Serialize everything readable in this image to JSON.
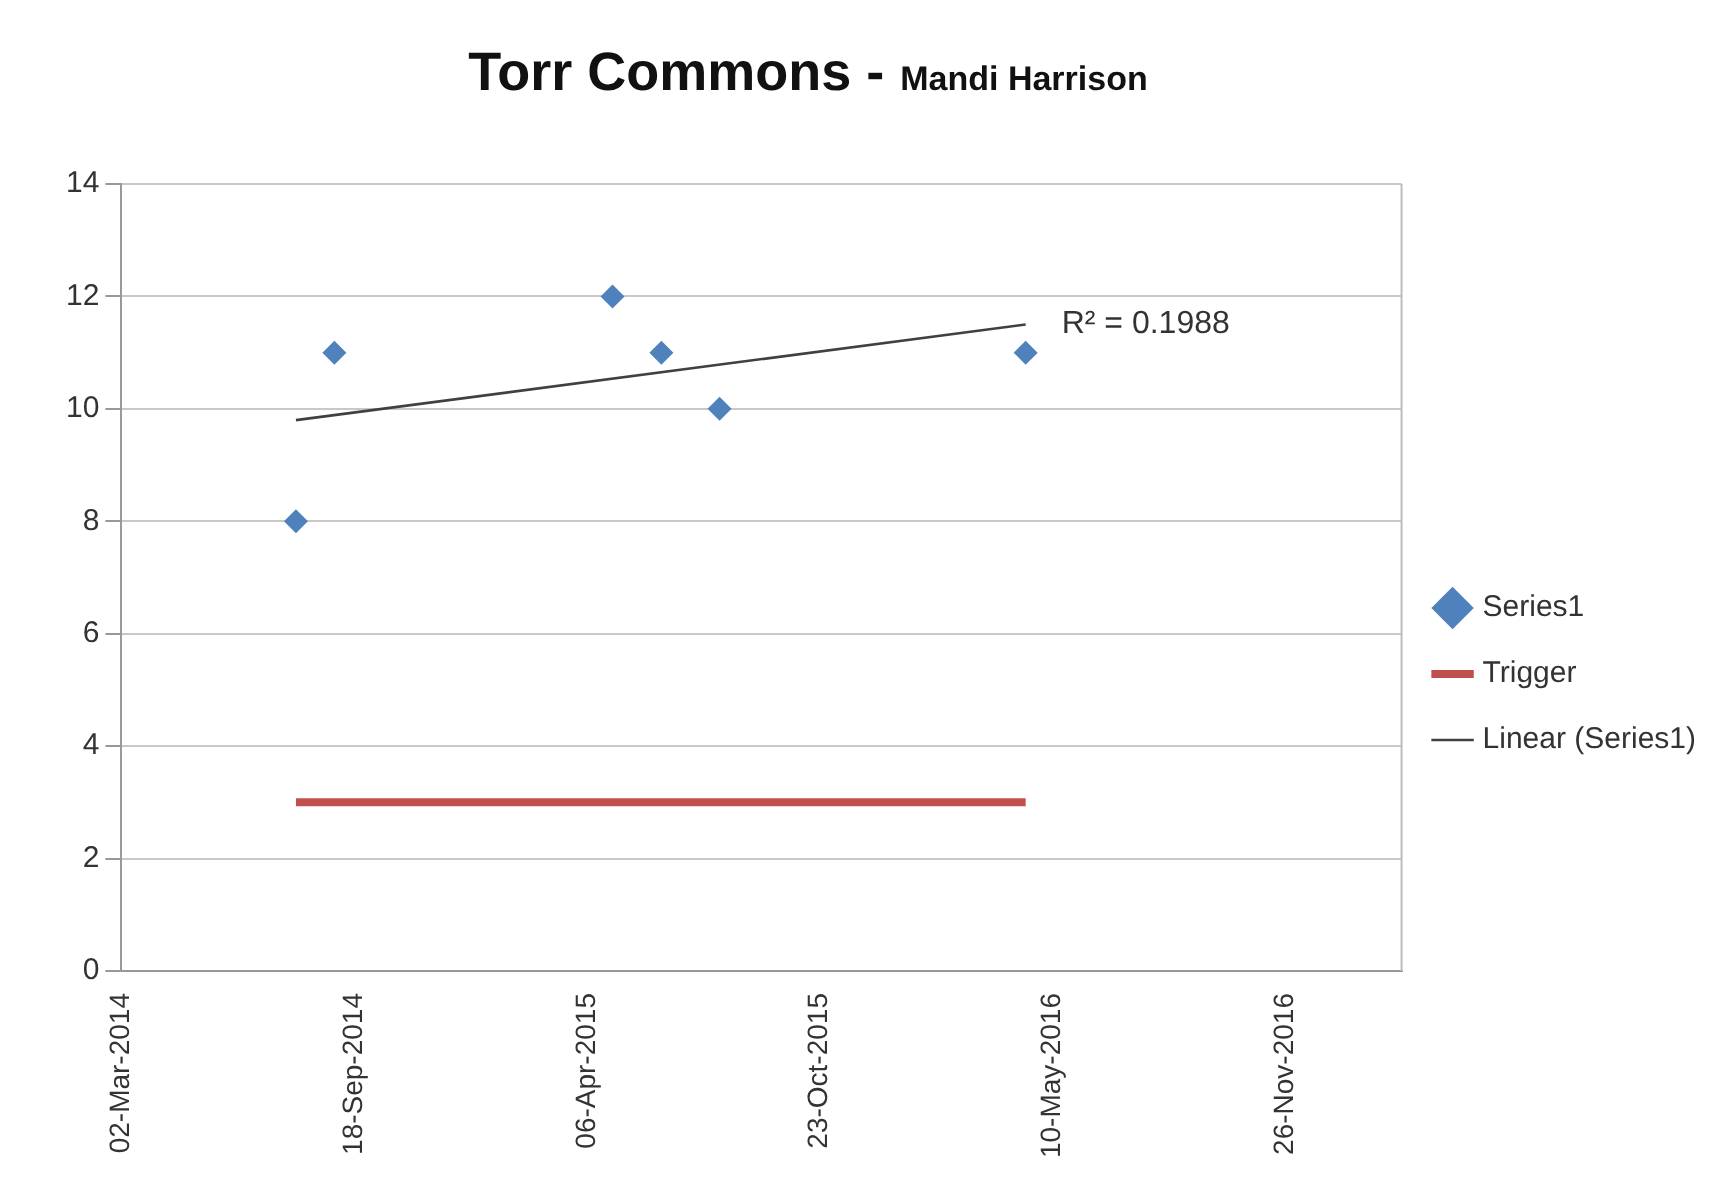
{
  "chart_data": {
    "type": "scatter",
    "title": "Torr Commons -",
    "subtitle": "Mandi Harrison",
    "xlim": [
      "2014-03-02",
      "2017-03-06"
    ],
    "xticks": [
      {
        "value": "2014-03-02",
        "label": "02-Mar-2014"
      },
      {
        "value": "2014-09-18",
        "label": "18-Sep-2014"
      },
      {
        "value": "2015-04-06",
        "label": "06-Apr-2015"
      },
      {
        "value": "2015-10-23",
        "label": "23-Oct-2015"
      },
      {
        "value": "2016-05-10",
        "label": "10-May-2016"
      },
      {
        "value": "2016-11-26",
        "label": "26-Nov-2016"
      }
    ],
    "ylim": [
      0,
      14
    ],
    "yticks": [
      0,
      2,
      4,
      6,
      8,
      10,
      12,
      14
    ],
    "grid": "y",
    "legend": "right",
    "series": [
      {
        "name": "Series1",
        "type": "scatter",
        "marker": "diamond",
        "color": "#4f81bd",
        "x": [
          "2014-07-30",
          "2014-09-01",
          "2015-04-28",
          "2015-06-09",
          "2015-07-29",
          "2016-04-17"
        ],
        "values": [
          8,
          11,
          12,
          11,
          10,
          11
        ]
      },
      {
        "name": "Trigger",
        "type": "line",
        "marker": "none",
        "color": "#c0504d",
        "x": [
          "2014-07-30",
          "2016-04-17"
        ],
        "values": [
          3,
          3
        ]
      },
      {
        "name": "Linear (Series1)",
        "type": "line",
        "marker": "none",
        "color": "#404040",
        "x": [
          "2014-07-30",
          "2016-04-17"
        ],
        "values": [
          9.8,
          11.5
        ]
      }
    ],
    "annotations": [
      {
        "text": "R² = 0.1988",
        "x": "2016-04-17",
        "y": 11.5
      }
    ]
  }
}
